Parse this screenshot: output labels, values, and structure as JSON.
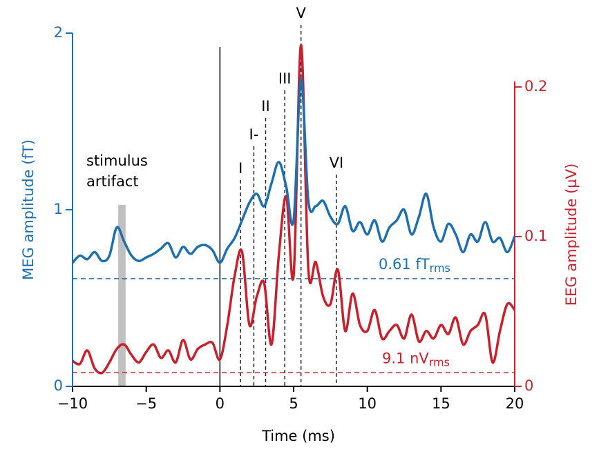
{
  "chart_data": {
    "type": "line",
    "xlabel": "Time (ms)",
    "ylabel": "MEG amplitude (fT)",
    "y2label": "EEG amplitude (µV)",
    "xlim": [
      -10,
      20
    ],
    "xticks": [
      {
        "value": -10,
        "label": "−10"
      },
      {
        "value": -5,
        "label": "−5"
      },
      0,
      5,
      10,
      15,
      20
    ],
    "ylim": [
      0,
      2
    ],
    "yticks": [
      0,
      1,
      2
    ],
    "y2lim": [
      0,
      0.236
    ],
    "y2ticks": [
      0,
      0.1,
      0.2
    ],
    "x": [
      -10,
      -9.5,
      -9,
      -8.5,
      -8,
      -7.5,
      -7,
      -6.5,
      -6,
      -5.5,
      -5,
      -4.5,
      -4,
      -3.5,
      -3,
      -2.5,
      -2,
      -1.5,
      -1,
      -0.5,
      0,
      0.5,
      1,
      1.5,
      2,
      2.5,
      3,
      3.5,
      4,
      4.5,
      5,
      5.5,
      6,
      6.5,
      7,
      7.5,
      8,
      8.5,
      9,
      9.5,
      10,
      10.5,
      11,
      11.5,
      12,
      12.5,
      13,
      13.5,
      14,
      14.5,
      15,
      15.5,
      16,
      16.5,
      17,
      17.5,
      18,
      18.5,
      19,
      19.5,
      20
    ],
    "series": [
      {
        "name": "MEG",
        "color": "#1f6fad",
        "axis": "y",
        "values": [
          0.7,
          0.74,
          0.72,
          0.76,
          0.71,
          0.74,
          0.9,
          0.82,
          0.74,
          0.71,
          0.73,
          0.75,
          0.78,
          0.81,
          0.73,
          0.79,
          0.75,
          0.79,
          0.8,
          0.77,
          0.7,
          0.78,
          0.84,
          0.94,
          1.04,
          1.09,
          1.02,
          1.15,
          1.27,
          1.13,
          0.94,
          1.74,
          1.05,
          1.02,
          1.05,
          0.96,
          0.92,
          1.02,
          0.88,
          0.93,
          0.86,
          0.94,
          0.82,
          0.9,
          0.94,
          1.0,
          0.86,
          0.96,
          1.09,
          0.9,
          0.82,
          0.92,
          0.86,
          0.76,
          0.86,
          0.82,
          0.93,
          0.82,
          0.84,
          0.76,
          0.85
        ]
      },
      {
        "name": "EEG",
        "color": "#c8202c",
        "axis": "y2",
        "values": [
          0.017,
          0.015,
          0.024,
          0.012,
          0.009,
          0.016,
          0.025,
          0.028,
          0.021,
          0.016,
          0.023,
          0.028,
          0.019,
          0.024,
          0.016,
          0.031,
          0.018,
          0.025,
          0.028,
          0.029,
          0.018,
          0.041,
          0.074,
          0.09,
          0.041,
          0.06,
          0.069,
          0.028,
          0.088,
          0.127,
          0.074,
          0.228,
          0.078,
          0.083,
          0.06,
          0.055,
          0.078,
          0.037,
          0.062,
          0.041,
          0.037,
          0.051,
          0.032,
          0.037,
          0.041,
          0.032,
          0.048,
          0.03,
          0.037,
          0.032,
          0.041,
          0.035,
          0.046,
          0.028,
          0.037,
          0.041,
          0.048,
          0.016,
          0.037,
          0.055,
          0.051
        ]
      }
    ],
    "reference_lines": [
      {
        "value": 0.61,
        "axis": "y",
        "color": "#1f6fad",
        "label": "0.61 fT",
        "subscript": "rms"
      },
      {
        "value": 0.0091,
        "axis": "y2",
        "color": "#c8202c",
        "label": "9.1 nV",
        "subscript": "rms"
      }
    ],
    "peaks": [
      {
        "label": "I",
        "x": 1.4
      },
      {
        "label": "I-",
        "x": 2.3
      },
      {
        "label": "II",
        "x": 3.1
      },
      {
        "label": "III",
        "x": 4.4
      },
      {
        "label": "V",
        "x": 5.5
      },
      {
        "label": "VI",
        "x": 7.9
      }
    ],
    "stimulus_line": 0,
    "shaded_region": {
      "x": [
        -6.9,
        -6.4
      ],
      "color": "#c0c0c0",
      "label": [
        "stimulus",
        "artifact"
      ]
    }
  }
}
